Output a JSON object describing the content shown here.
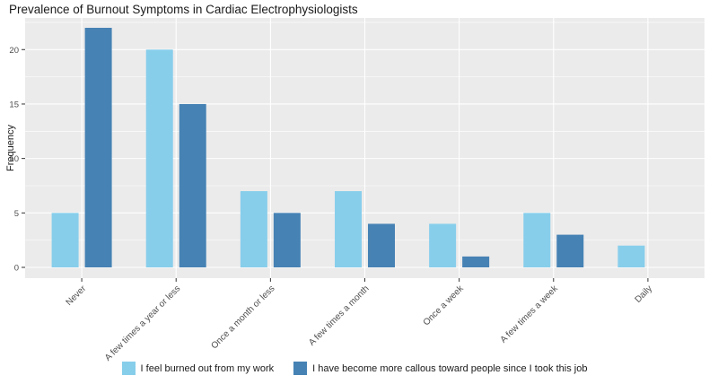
{
  "chart_data": {
    "type": "bar",
    "title": "Prevalence of Burnout Symptoms in Cardiac Electrophysiologists",
    "xlabel": "",
    "ylabel": "Frequency",
    "categories": [
      "Never",
      "A few times a year or less",
      "Once a month or less",
      "A few times a month",
      "Once a week",
      "A few times a week",
      "Daily"
    ],
    "series": [
      {
        "name": "I feel burned out from my work",
        "color": "#87CEEB",
        "values": [
          5,
          20,
          7,
          7,
          4,
          5,
          2
        ]
      },
      {
        "name": "I have become more callous toward people since I took this job",
        "color": "#4682B4",
        "values": [
          22,
          15,
          5,
          4,
          1,
          3,
          0
        ]
      }
    ],
    "ylim": [
      0,
      22.9
    ],
    "yticks": [
      0,
      5,
      10,
      15,
      20
    ],
    "yticks_minor": [
      2.5,
      7.5,
      12.5,
      17.5,
      22.5
    ],
    "grid": "on",
    "legend_position": "bottom",
    "panel_background": "#EBEBEB",
    "gridline_color": "#FFFFFF",
    "tick_label_color": "#4D4D4D",
    "tick_mark_color": "#333333"
  }
}
